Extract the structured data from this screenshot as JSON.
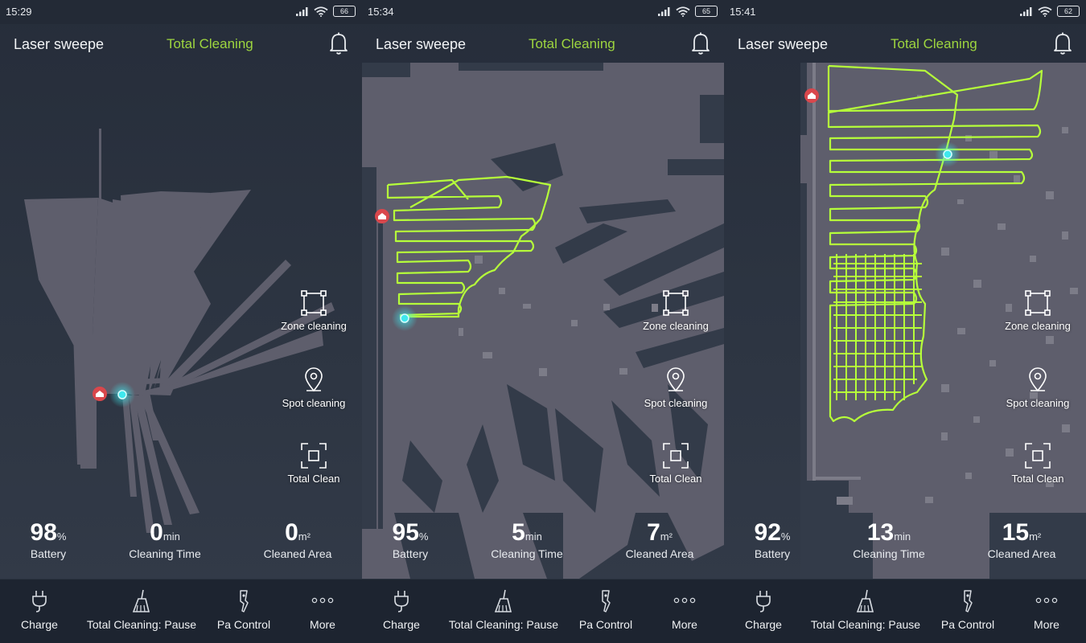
{
  "screens": [
    {
      "status_time": "15:29",
      "battery_level": "66",
      "app_title": "Laser sweepe",
      "mode_title": "Total Cleaning",
      "stats": {
        "battery": {
          "value": "98",
          "unit": "%",
          "label": "Battery"
        },
        "time": {
          "value": "0",
          "unit": "min",
          "label": "Cleaning Time"
        },
        "area": {
          "value": "0",
          "unit": "m²",
          "label": "Cleaned Area"
        }
      }
    },
    {
      "status_time": "15:34",
      "battery_level": "65",
      "app_title": "Laser sweepe",
      "mode_title": "Total Cleaning",
      "stats": {
        "battery": {
          "value": "95",
          "unit": "%",
          "label": "Battery"
        },
        "time": {
          "value": "5",
          "unit": "min",
          "label": "Cleaning Time"
        },
        "area": {
          "value": "7",
          "unit": "m²",
          "label": "Cleaned Area"
        }
      }
    },
    {
      "status_time": "15:41",
      "battery_level": "62",
      "app_title": "Laser sweepe",
      "mode_title": "Total Cleaning",
      "stats": {
        "battery": {
          "value": "92",
          "unit": "%",
          "label": "Battery"
        },
        "time": {
          "value": "13",
          "unit": "min",
          "label": "Cleaning Time"
        },
        "area": {
          "value": "15",
          "unit": "m²",
          "label": "Cleaned Area"
        }
      }
    }
  ],
  "side_menu": {
    "zone": "Zone cleaning",
    "spot": "Spot cleaning",
    "total": "Total Clean"
  },
  "bottom_bar": {
    "charge": "Charge",
    "pause": "Total Cleaning: Pause",
    "control": "Pa Control",
    "more": "More"
  },
  "icons": {
    "notifications": "bell-icon",
    "zone": "zone-frame-icon",
    "spot": "location-pin-icon",
    "total": "focus-frame-icon",
    "charge": "plug-icon",
    "pause": "broom-icon",
    "control": "remote-icon",
    "more": "more-dots-icon",
    "dock": "charging-dock-icon",
    "robot": "robot-position-icon"
  },
  "colors": {
    "accent_green": "#9ed63f",
    "path_green": "#b6ff3a",
    "robot_cyan": "#3fe8ee",
    "dock_red": "#d9474c",
    "map_gray": "#5e5e6c",
    "background": "#2a313e",
    "bottom_bar": "#1d2430"
  }
}
